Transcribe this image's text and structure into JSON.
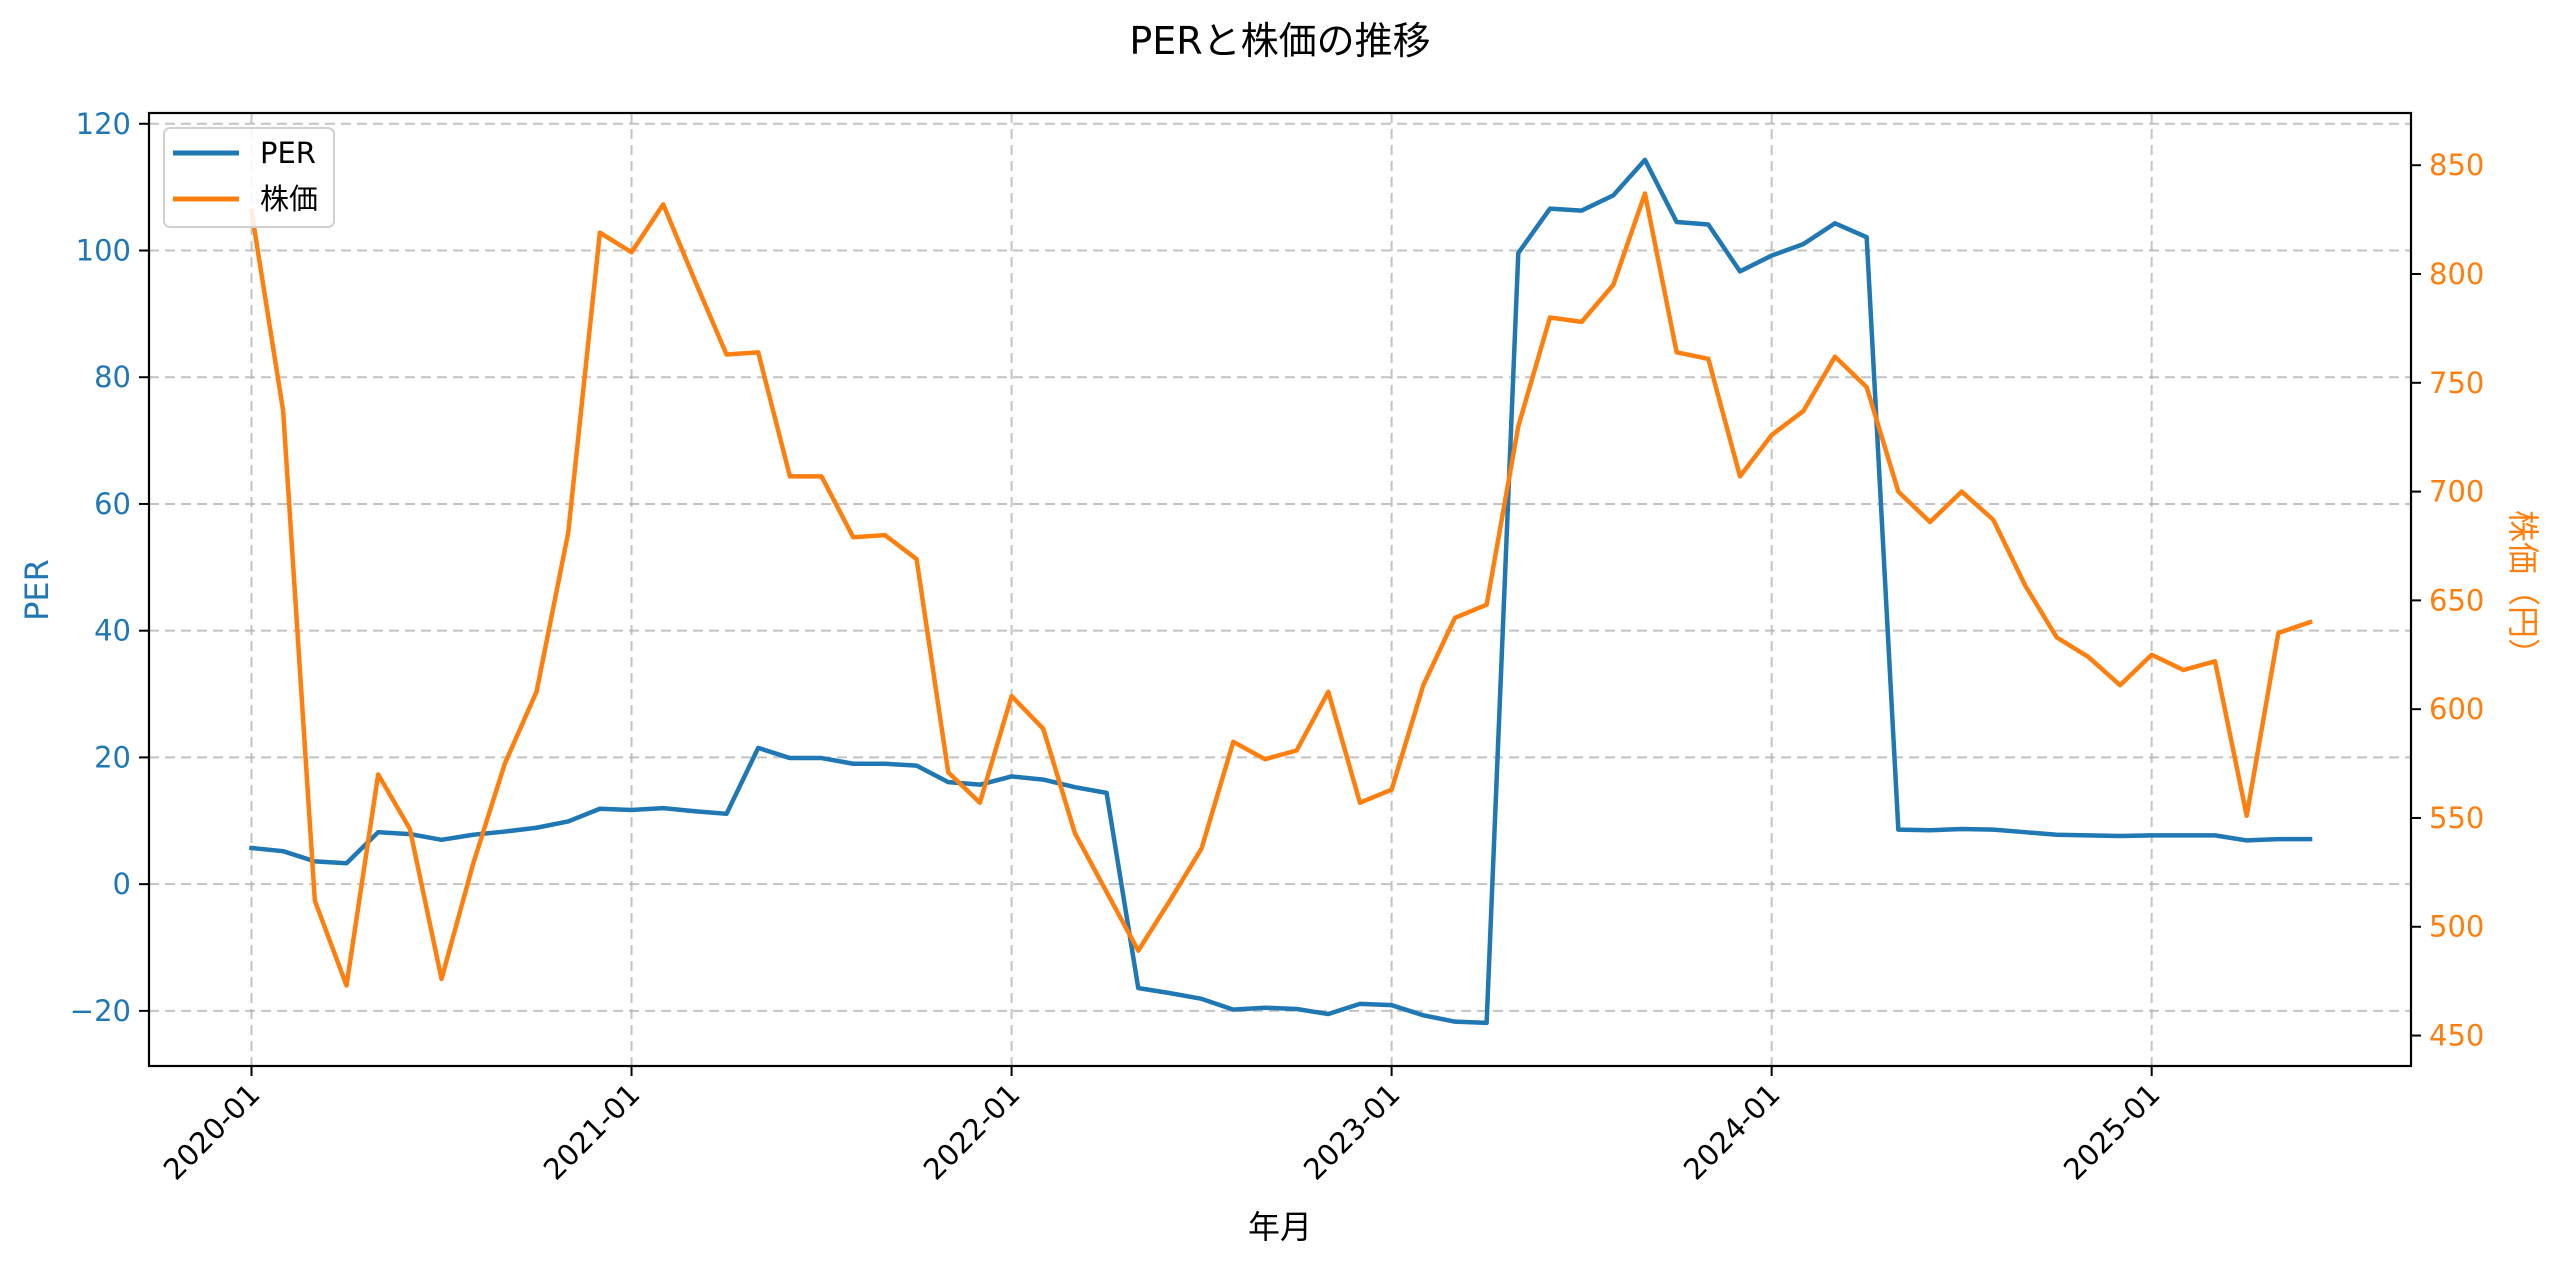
{
  "figure": {
    "title": "PERと株価の推移",
    "xlabel": "年月",
    "ylabel_left": "PER",
    "ylabel_right": "株価（円）",
    "legend": [
      {
        "label": "PER",
        "color": "#1f77b4"
      },
      {
        "label": "株価",
        "color": "#ff7f0e"
      }
    ],
    "x_ticks": [
      "2020-01",
      "2021-01",
      "2022-01",
      "2023-01",
      "2024-01",
      "2025-01"
    ],
    "y_left_ticks": [
      "120",
      "100",
      "80",
      "60",
      "40",
      "20",
      "0",
      "−20"
    ],
    "y_right_ticks": [
      "850",
      "800",
      "750",
      "700",
      "650",
      "600",
      "550",
      "500",
      "450"
    ],
    "colors": {
      "per": "#1f77b4",
      "price": "#ff7f0e",
      "grid": "#b0b0b0"
    }
  },
  "chart_data": {
    "type": "line",
    "title": "PERと株価の推移",
    "xlabel": "年月",
    "ylabel": "PER",
    "ylabel_secondary": "株価（円）",
    "grid": true,
    "legend_position": "upper left",
    "x_tick_labels": [
      "2020-01",
      "2021-01",
      "2022-01",
      "2023-01",
      "2024-01",
      "2025-01"
    ],
    "ylim": [
      -28.7,
      121.7
    ],
    "ylim_secondary": [
      436,
      874
    ],
    "yticks": [
      -20,
      0,
      20,
      40,
      60,
      80,
      100,
      120
    ],
    "yticks_secondary": [
      450,
      500,
      550,
      600,
      650,
      700,
      750,
      800,
      850
    ],
    "x": [
      "2020-01",
      "2020-02",
      "2020-03",
      "2020-04",
      "2020-05",
      "2020-06",
      "2020-07",
      "2020-08",
      "2020-09",
      "2020-10",
      "2020-11",
      "2020-12",
      "2021-01",
      "2021-02",
      "2021-03",
      "2021-04",
      "2021-05",
      "2021-06",
      "2021-07",
      "2021-08",
      "2021-09",
      "2021-10",
      "2021-11",
      "2021-12",
      "2022-01",
      "2022-02",
      "2022-03",
      "2022-04",
      "2022-05",
      "2022-06",
      "2022-07",
      "2022-08",
      "2022-09",
      "2022-10",
      "2022-11",
      "2022-12",
      "2023-01",
      "2023-02",
      "2023-03",
      "2023-04",
      "2023-05",
      "2023-06",
      "2023-07",
      "2023-08",
      "2023-09",
      "2023-10",
      "2023-11",
      "2023-12",
      "2024-01",
      "2024-02",
      "2024-03",
      "2024-04",
      "2024-05",
      "2024-06",
      "2024-07",
      "2024-08",
      "2024-09",
      "2024-10",
      "2024-11",
      "2024-12",
      "2025-01",
      "2025-02",
      "2025-03",
      "2025-04",
      "2025-05",
      "2025-06"
    ],
    "series": [
      {
        "name": "PER",
        "axis": "left",
        "color": "#1f77b4",
        "values": [
          5.7,
          5.2,
          3.6,
          3.3,
          8.2,
          7.9,
          7.0,
          7.8,
          8.3,
          8.9,
          9.9,
          11.9,
          11.7,
          12.0,
          11.5,
          11.1,
          21.5,
          19.9,
          19.9,
          19.0,
          19.0,
          18.7,
          16.1,
          15.7,
          17.0,
          16.5,
          15.3,
          14.4,
          -16.4,
          -17.2,
          -18.1,
          -19.8,
          -19.5,
          -19.7,
          -20.5,
          -18.9,
          -19.1,
          -20.7,
          -21.7,
          -21.9,
          99.6,
          106.6,
          106.3,
          108.7,
          114.3,
          104.5,
          104.1,
          96.7,
          99.2,
          101.0,
          104.3,
          102.1,
          8.6,
          8.5,
          8.7,
          8.6,
          8.2,
          7.8,
          7.7,
          7.6,
          7.7,
          7.7,
          7.7,
          6.9,
          7.1,
          7.1
        ]
      },
      {
        "name": "株価",
        "axis": "right",
        "color": "#ff7f0e",
        "values": [
          829,
          737,
          512,
          473,
          570,
          545,
          476,
          529,
          575,
          608,
          681,
          819,
          810,
          832,
          797,
          763,
          764,
          707,
          707,
          679,
          680,
          669,
          571,
          557,
          606,
          591,
          543,
          516,
          489,
          512,
          536,
          585,
          577,
          581,
          608,
          557,
          563,
          611,
          642,
          648,
          730,
          780,
          778,
          795,
          837,
          764,
          761,
          707,
          726,
          737,
          762,
          748,
          700,
          686,
          700,
          687,
          657,
          633,
          624,
          611,
          625,
          618,
          622,
          551,
          635,
          640
        ]
      }
    ]
  }
}
